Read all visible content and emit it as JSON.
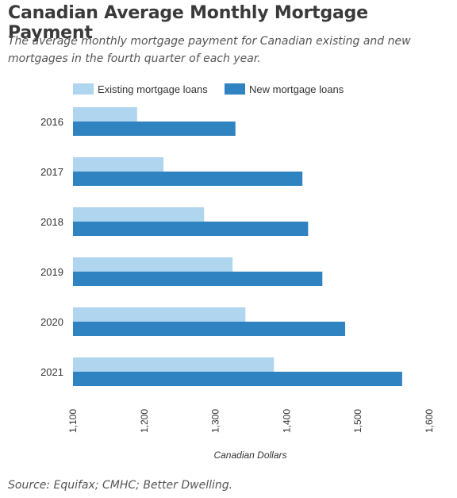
{
  "title": "Canadian Average Monthly Mortgage Payment",
  "subtitle": "The average monthly mortgage payment for Canadian existing and new mortgages in the fourth quarter of each year.",
  "source": "Source: Equifax; CMHC; Better Dwelling.",
  "colors": {
    "existing": "#afd5ef",
    "new": "#2e83c0"
  },
  "chart_data": {
    "type": "bar",
    "orientation": "horizontal",
    "categories": [
      "2016",
      "2017",
      "2018",
      "2019",
      "2020",
      "2021"
    ],
    "series": [
      {
        "name": "Existing mortgage loans",
        "values": [
          1190,
          1227,
          1284,
          1324,
          1342,
          1382
        ]
      },
      {
        "name": "New mortgage loans",
        "values": [
          1328,
          1422,
          1430,
          1450,
          1482,
          1562
        ]
      }
    ],
    "xlabel": "Canadian Dollars",
    "ylabel": "",
    "xlim": [
      1100,
      1600
    ],
    "xticks": [
      "1,100",
      "1,200",
      "1,300",
      "1,400",
      "1,500",
      "1,600"
    ],
    "legend": "top-left",
    "grid": false
  }
}
